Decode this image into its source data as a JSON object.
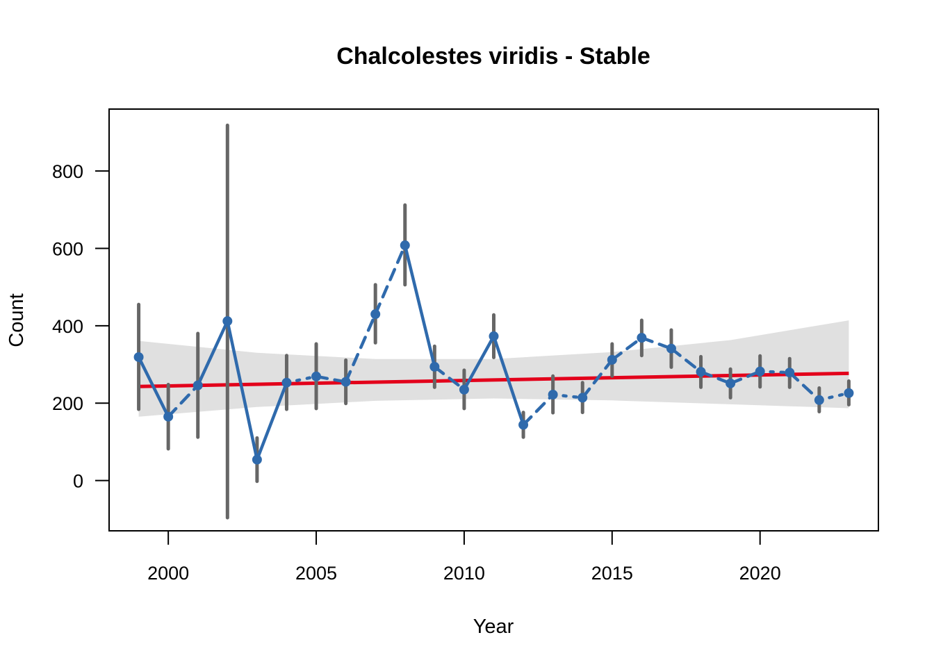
{
  "chart_data": {
    "type": "line",
    "title": "Chalcolestes viridis - Stable",
    "xlabel": "Year",
    "ylabel": "Count",
    "xlim": [
      1998,
      2024
    ],
    "ylim": [
      -130,
      960
    ],
    "x_ticks": [
      "2000",
      "2005",
      "2010",
      "2015",
      "2020"
    ],
    "y_ticks": [
      "0",
      "200",
      "400",
      "600",
      "800"
    ],
    "grid": false,
    "series": [
      {
        "x": [
          1999,
          2000,
          2001,
          2002,
          2003,
          2004,
          2005,
          2006,
          2007,
          2008,
          2009,
          2010,
          2011,
          2012,
          2013,
          2014,
          2015,
          2016,
          2017,
          2018,
          2019,
          2020,
          2021,
          2022,
          2023
        ],
        "values": [
          319,
          165,
          246,
          412,
          54,
          253,
          269,
          255,
          430,
          608,
          294,
          235,
          373,
          144,
          222,
          214,
          312,
          369,
          341,
          281,
          251,
          282,
          279,
          208,
          226
        ],
        "lower": [
          184,
          82,
          112,
          -96,
          -2,
          184,
          186,
          199,
          356,
          506,
          241,
          186,
          318,
          112,
          175,
          176,
          270,
          323,
          293,
          241,
          214,
          242,
          241,
          178,
          196
        ],
        "upper": [
          455,
          248,
          380,
          918,
          110,
          323,
          353,
          311,
          506,
          712,
          347,
          285,
          428,
          176,
          270,
          253,
          353,
          414,
          389,
          320,
          288,
          322,
          315,
          239,
          257
        ],
        "segment_style": [
          "solid",
          "dashed",
          "solid",
          "solid",
          "solid",
          "dotted",
          "dashed",
          "dashed",
          "dashed",
          "solid",
          "dashed",
          "solid",
          "solid",
          "dashed",
          "dotted",
          "dashed",
          "dashed",
          "dashed",
          "dashed",
          "dashed",
          "dashed",
          "dotted",
          "dashed",
          "dotted"
        ],
        "color": "#2f6aac"
      }
    ],
    "trend": {
      "x": [
        1999,
        2023
      ],
      "values": [
        243,
        277
      ],
      "color": "#e3001b"
    },
    "confidence_band": {
      "x": [
        1999,
        2003,
        2007,
        2011,
        2015,
        2019,
        2023
      ],
      "lower": [
        165,
        190,
        206,
        212,
        207,
        197,
        187
      ],
      "upper": [
        361,
        330,
        314,
        314,
        332,
        363,
        414
      ],
      "color": "#e0e0e0"
    },
    "error_bar_color": "#666666"
  }
}
